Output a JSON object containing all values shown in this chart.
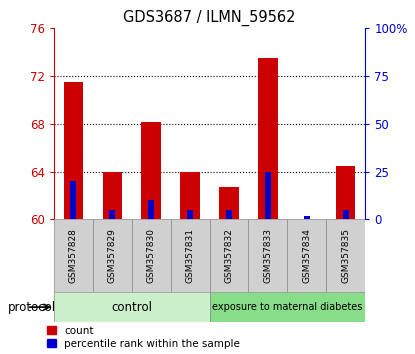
{
  "title": "GDS3687 / ILMN_59562",
  "samples": [
    "GSM357828",
    "GSM357829",
    "GSM357830",
    "GSM357831",
    "GSM357832",
    "GSM357833",
    "GSM357834",
    "GSM357835"
  ],
  "red_values": [
    71.5,
    64.0,
    68.2,
    64.0,
    62.7,
    73.5,
    60.05,
    64.5
  ],
  "blue_pct": [
    20,
    5,
    10,
    5,
    5,
    25,
    2,
    5
  ],
  "baseline": 60.0,
  "ylim_left": [
    60.0,
    76.0
  ],
  "ylim_right": [
    0,
    100
  ],
  "yticks_left": [
    60,
    64,
    68,
    72,
    76
  ],
  "yticks_right": [
    0,
    25,
    50,
    75,
    100
  ],
  "yticklabels_right": [
    "0",
    "25",
    "50",
    "75",
    "100%"
  ],
  "red_color": "#cc0000",
  "blue_color": "#0000cc",
  "bg_plot": "#ffffff",
  "bg_xticklabels": "#d0d0d0",
  "control_color": "#ccf0cc",
  "diabetes_color": "#88dd88",
  "control_label": "control",
  "diabetes_label": "exposure to maternal diabetes",
  "protocol_label": "protocol",
  "control_indices": [
    0,
    1,
    2,
    3
  ],
  "diabetes_indices": [
    4,
    5,
    6,
    7
  ],
  "legend_red": "count",
  "legend_blue": "percentile rank within the sample",
  "bar_width": 0.5,
  "blue_bar_width": 0.15
}
